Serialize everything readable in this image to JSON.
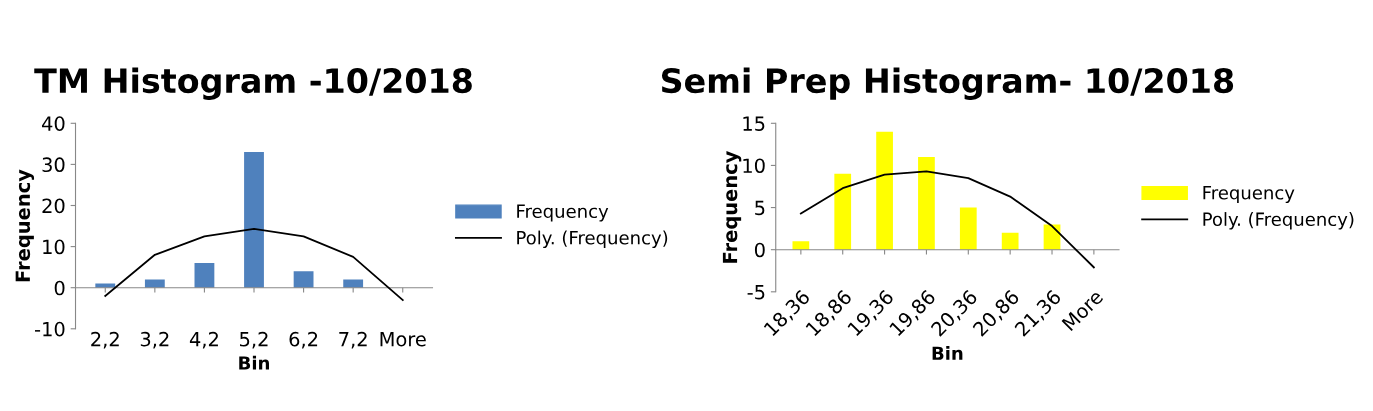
{
  "chart_data": [
    {
      "type": "bar",
      "title": "TM Histogram -10/2018",
      "xlabel": "Bin",
      "ylabel": "Frequency",
      "categories": [
        "2,2",
        "3,2",
        "4,2",
        "5,2",
        "6,2",
        "7,2",
        "More"
      ],
      "series": [
        {
          "name": "Frequency",
          "color": "#4f81bd",
          "values": [
            1,
            2,
            6,
            33,
            4,
            2,
            0
          ]
        },
        {
          "name": "Poly. (Frequency)",
          "type": "line",
          "color": "#000000",
          "values": [
            -2,
            8,
            12.5,
            14.3,
            12.5,
            7.5,
            -3
          ]
        }
      ],
      "ylim": [
        -10,
        40
      ],
      "yticks": [
        -10,
        0,
        10,
        20,
        30,
        40
      ],
      "legend": "right",
      "grid": false,
      "marker": "none"
    },
    {
      "type": "bar",
      "title": "Semi Prep Histogram- 10/2018",
      "xlabel": "Bin",
      "ylabel": "Frequency",
      "categories": [
        "18,36",
        "18,86",
        "19,36",
        "19,86",
        "20,36",
        "20,86",
        "21,36",
        "More"
      ],
      "series": [
        {
          "name": "Frequency",
          "color": "#ffff00",
          "values": [
            1,
            9,
            14,
            11,
            5,
            2,
            3,
            0
          ]
        },
        {
          "name": "Poly. (Frequency)",
          "type": "line",
          "color": "#000000",
          "values": [
            4.3,
            7.3,
            8.9,
            9.3,
            8.5,
            6.3,
            2.8,
            -2.1
          ]
        }
      ],
      "ylim": [
        -5,
        15
      ],
      "yticks": [
        -5,
        0,
        5,
        10,
        15
      ],
      "legend": "right",
      "grid": false,
      "marker": "none"
    }
  ]
}
